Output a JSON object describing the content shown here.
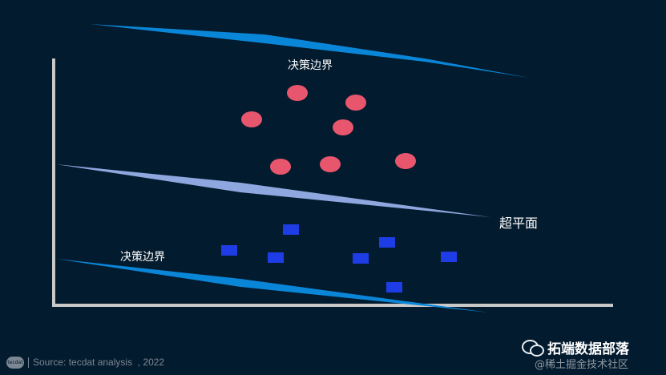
{
  "labels": {
    "upper_margin": "决策边界",
    "lower_margin": "决策边界",
    "hyperplane": "超平面"
  },
  "footer": {
    "logo_text": "tecdat",
    "source": "Source: tecdat analysis  , 2022"
  },
  "wechat": {
    "brand": "拓端数据部落",
    "watermark": "@稀土掘金技术社区"
  },
  "colors": {
    "background": "#031b2e",
    "margin_line": "#0a86d8",
    "hyperplane_line": "#8ea7de",
    "class_a": "#e8566e",
    "class_b": "#1f3de6",
    "axis": "#c8c8c8"
  },
  "icons": {
    "wechat": "wechat-icon",
    "logo": "tecdat-logo"
  }
}
